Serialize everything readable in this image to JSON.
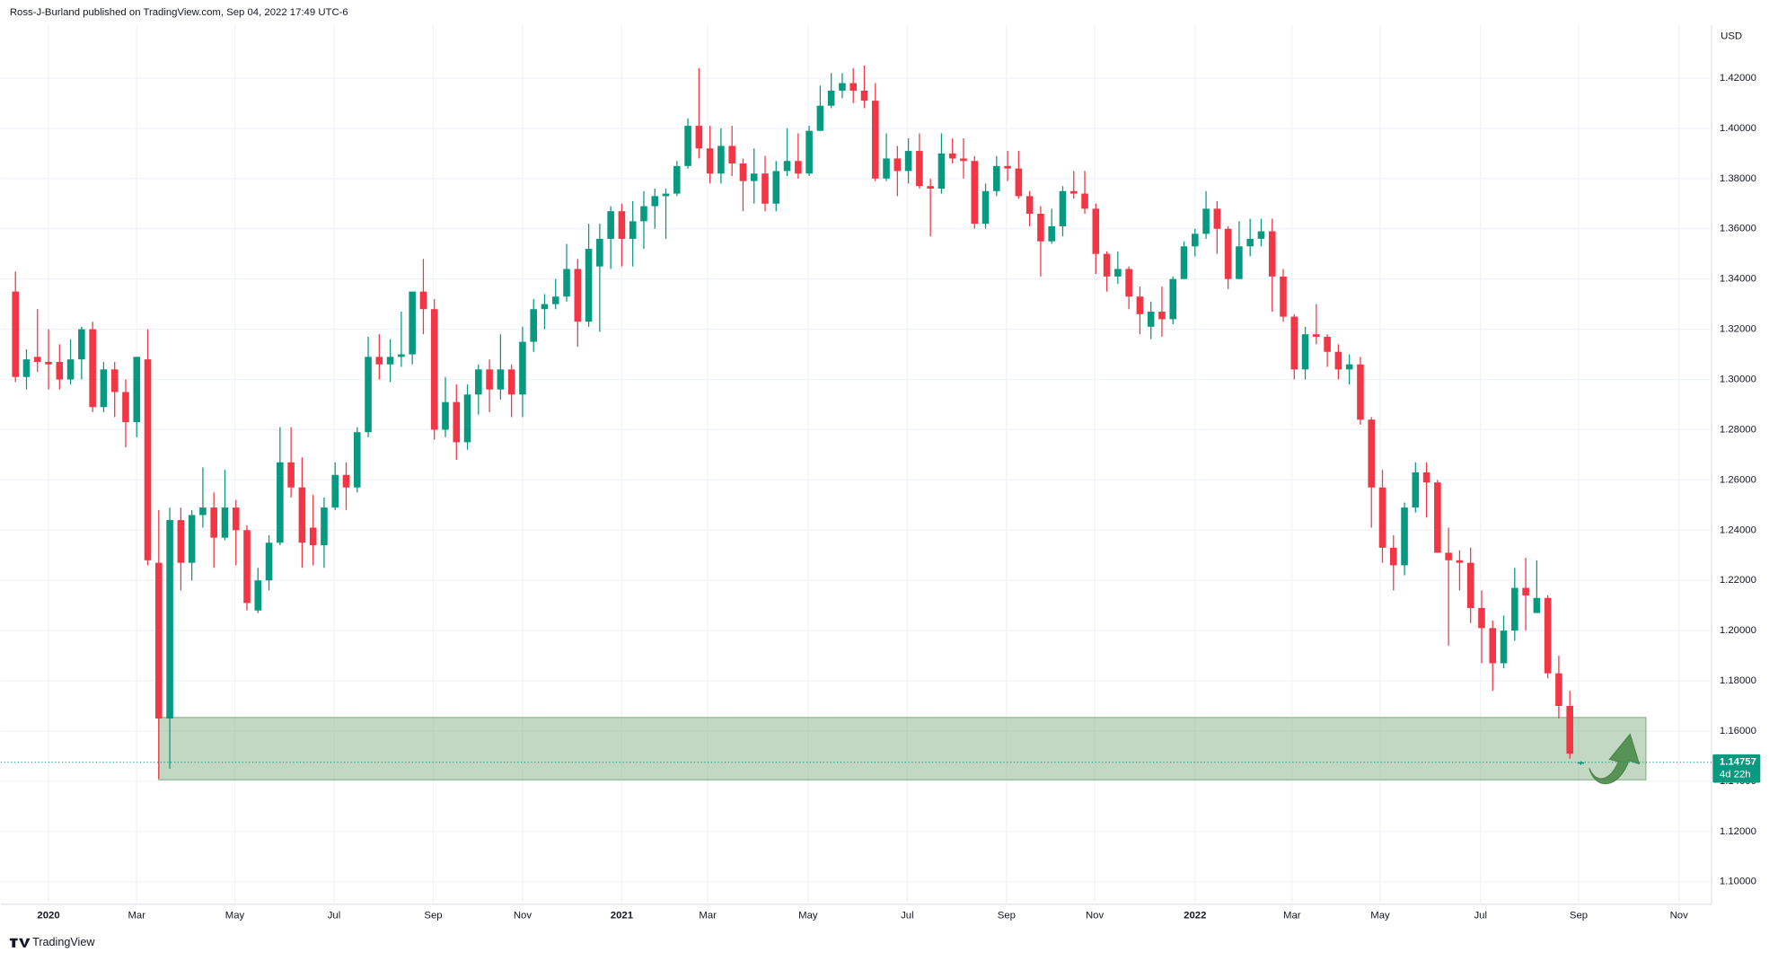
{
  "chart_data": {
    "type": "candlestick",
    "header": "Ross-J-Burland published on TradingView.com, Sep 04, 2022 17:49 UTC-6",
    "currency": "USD",
    "brand": "TradingView",
    "countdown": "4d 22h",
    "colors": {
      "up": "#089981",
      "down": "#f23645"
    },
    "grid": true,
    "xlim": [
      -1.34,
      153.86
    ],
    "xticks": [
      {
        "value": 3,
        "label": "2020"
      },
      {
        "value": 11,
        "label": "Mar"
      },
      {
        "value": 19.9,
        "label": "May"
      },
      {
        "value": 28.9,
        "label": "Jul"
      },
      {
        "value": 37.9,
        "label": "Sep"
      },
      {
        "value": 46,
        "label": "Nov"
      },
      {
        "value": 55,
        "label": "2021"
      },
      {
        "value": 62.8,
        "label": "Mar"
      },
      {
        "value": 71.9,
        "label": "May"
      },
      {
        "value": 80.9,
        "label": "Jul"
      },
      {
        "value": 89.9,
        "label": "Sep"
      },
      {
        "value": 97.9,
        "label": "Nov"
      },
      {
        "value": 107,
        "label": "2022"
      },
      {
        "value": 115.8,
        "label": "Mar"
      },
      {
        "value": 123.8,
        "label": "May"
      },
      {
        "value": 132.9,
        "label": "Jul"
      },
      {
        "value": 141.8,
        "label": "Sep"
      },
      {
        "value": 150.9,
        "label": "Nov"
      }
    ],
    "ylim": [
      1.091,
      1.4511
    ],
    "yticks": [
      {
        "value": 1.1,
        "label": "1.10000"
      },
      {
        "value": 1.12,
        "label": "1.12000"
      },
      {
        "value": 1.14,
        "label": "1.14000"
      },
      {
        "value": 1.16,
        "label": "1.16000"
      },
      {
        "value": 1.18,
        "label": "1.18000"
      },
      {
        "value": 1.2,
        "label": "1.20000"
      },
      {
        "value": 1.22,
        "label": "1.22000"
      },
      {
        "value": 1.24,
        "label": "1.24000"
      },
      {
        "value": 1.26,
        "label": "1.26000"
      },
      {
        "value": 1.28,
        "label": "1.28000"
      },
      {
        "value": 1.3,
        "label": "1.30000"
      },
      {
        "value": 1.32,
        "label": "1.32000"
      },
      {
        "value": 1.34,
        "label": "1.34000"
      },
      {
        "value": 1.36,
        "label": "1.36000"
      },
      {
        "value": 1.38,
        "label": "1.38000"
      },
      {
        "value": 1.4,
        "label": "1.40000"
      },
      {
        "value": 1.42,
        "label": "1.42000"
      }
    ],
    "zone": {
      "low": 1.1406,
      "high": 1.1654,
      "start": 13,
      "end": 147.9,
      "color": "#8fb88f"
    },
    "open": [
      1.335,
      1.301,
      1.309,
      1.307,
      1.307,
      1.3,
      1.308,
      1.32,
      1.289,
      1.304,
      1.295,
      1.283,
      1.308,
      1.227,
      1.165,
      1.244,
      1.227,
      1.246,
      1.249,
      1.237,
      1.249,
      1.24,
      1.208,
      1.22,
      1.235,
      1.267,
      1.257,
      1.241,
      1.234,
      1.249,
      1.262,
      1.257,
      1.279,
      1.309,
      1.306,
      1.309,
      1.31,
      1.335,
      1.328,
      1.28,
      1.291,
      1.275,
      1.294,
      1.304,
      1.296,
      1.304,
      1.294,
      1.315,
      1.328,
      1.33,
      1.333,
      1.344,
      1.323,
      1.345,
      1.356,
      1.367,
      1.356,
      1.363,
      1.369,
      1.373,
      1.374,
      1.385,
      1.401,
      1.392,
      1.382,
      1.393,
      1.386,
      1.379,
      1.382,
      1.37,
      1.383,
      1.387,
      1.382,
      1.399,
      1.409,
      1.415,
      1.418,
      1.415,
      1.411,
      1.38,
      1.388,
      1.383,
      1.391,
      1.377,
      1.376,
      1.39,
      1.388,
      1.387,
      1.362,
      1.375,
      1.385,
      1.384,
      1.373,
      1.366,
      1.355,
      1.361,
      1.375,
      1.374,
      1.368,
      1.35,
      1.341,
      1.344,
      1.333,
      1.321,
      1.327,
      1.324,
      1.34,
      1.353,
      1.358,
      1.368,
      1.36,
      1.34,
      1.353,
      1.356,
      1.359,
      1.341,
      1.325,
      1.304,
      1.318,
      1.317,
      1.311,
      1.304,
      1.306,
      1.284,
      1.257,
      1.233,
      1.226,
      1.249,
      1.263,
      1.259,
      1.231,
      1.228,
      1.227,
      1.209,
      1.201,
      1.187,
      1.2,
      1.217,
      1.207,
      1.213,
      1.183,
      1.17,
      1.147
    ],
    "high": [
      1.343,
      1.312,
      1.328,
      1.32,
      1.314,
      1.316,
      1.321,
      1.323,
      1.307,
      1.307,
      1.3,
      1.309,
      1.32,
      1.248,
      1.249,
      1.249,
      1.248,
      1.265,
      1.255,
      1.264,
      1.252,
      1.242,
      1.225,
      1.238,
      1.281,
      1.281,
      1.269,
      1.254,
      1.253,
      1.267,
      1.267,
      1.281,
      1.317,
      1.318,
      1.316,
      1.327,
      1.335,
      1.348,
      1.332,
      1.301,
      1.298,
      1.298,
      1.306,
      1.308,
      1.318,
      1.306,
      1.321,
      1.332,
      1.334,
      1.34,
      1.354,
      1.348,
      1.362,
      1.362,
      1.369,
      1.37,
      1.371,
      1.375,
      1.376,
      1.376,
      1.387,
      1.404,
      1.424,
      1.401,
      1.4,
      1.401,
      1.388,
      1.392,
      1.389,
      1.387,
      1.4,
      1.398,
      1.401,
      1.417,
      1.422,
      1.422,
      1.424,
      1.425,
      1.418,
      1.398,
      1.393,
      1.396,
      1.398,
      1.38,
      1.398,
      1.396,
      1.396,
      1.389,
      1.378,
      1.389,
      1.391,
      1.391,
      1.375,
      1.369,
      1.368,
      1.377,
      1.383,
      1.383,
      1.37,
      1.351,
      1.351,
      1.345,
      1.337,
      1.331,
      1.337,
      1.341,
      1.355,
      1.36,
      1.375,
      1.371,
      1.361,
      1.363,
      1.364,
      1.364,
      1.364,
      1.344,
      1.326,
      1.321,
      1.33,
      1.318,
      1.314,
      1.31,
      1.309,
      1.285,
      1.264,
      1.238,
      1.251,
      1.267,
      1.267,
      1.26,
      1.241,
      1.232,
      1.233,
      1.216,
      1.204,
      1.206,
      1.225,
      1.229,
      1.228,
      1.214,
      1.19,
      1.176,
      1.148
    ],
    "low": [
      1.299,
      1.296,
      1.303,
      1.296,
      1.296,
      1.298,
      1.3,
      1.287,
      1.287,
      1.285,
      1.273,
      1.277,
      1.226,
      1.141,
      1.145,
      1.216,
      1.22,
      1.241,
      1.225,
      1.236,
      1.226,
      1.208,
      1.207,
      1.216,
      1.234,
      1.253,
      1.225,
      1.226,
      1.225,
      1.248,
      1.248,
      1.255,
      1.277,
      1.3,
      1.299,
      1.305,
      1.306,
      1.318,
      1.276,
      1.277,
      1.268,
      1.272,
      1.286,
      1.287,
      1.292,
      1.285,
      1.285,
      1.311,
      1.32,
      1.328,
      1.331,
      1.313,
      1.321,
      1.319,
      1.344,
      1.345,
      1.345,
      1.352,
      1.36,
      1.356,
      1.373,
      1.384,
      1.388,
      1.378,
      1.378,
      1.381,
      1.367,
      1.37,
      1.367,
      1.367,
      1.381,
      1.38,
      1.381,
      1.399,
      1.408,
      1.412,
      1.41,
      1.408,
      1.379,
      1.379,
      1.373,
      1.378,
      1.376,
      1.357,
      1.374,
      1.386,
      1.38,
      1.36,
      1.36,
      1.373,
      1.379,
      1.372,
      1.361,
      1.341,
      1.354,
      1.357,
      1.372,
      1.366,
      1.342,
      1.335,
      1.338,
      1.328,
      1.318,
      1.316,
      1.317,
      1.322,
      1.34,
      1.349,
      1.356,
      1.35,
      1.336,
      1.34,
      1.349,
      1.353,
      1.327,
      1.323,
      1.3,
      1.3,
      1.314,
      1.305,
      1.3,
      1.298,
      1.282,
      1.241,
      1.227,
      1.216,
      1.222,
      1.247,
      1.245,
      1.231,
      1.194,
      1.216,
      1.203,
      1.187,
      1.176,
      1.185,
      1.196,
      1.2,
      1.207,
      1.181,
      1.165,
      1.149,
      1.1465
    ],
    "close": [
      1.301,
      1.308,
      1.307,
      1.306,
      1.3,
      1.308,
      1.32,
      1.289,
      1.304,
      1.295,
      1.283,
      1.309,
      1.228,
      1.165,
      1.244,
      1.227,
      1.246,
      1.249,
      1.237,
      1.249,
      1.24,
      1.211,
      1.22,
      1.235,
      1.267,
      1.257,
      1.235,
      1.234,
      1.249,
      1.262,
      1.257,
      1.279,
      1.309,
      1.306,
      1.309,
      1.31,
      1.335,
      1.328,
      1.28,
      1.291,
      1.275,
      1.294,
      1.304,
      1.296,
      1.304,
      1.294,
      1.315,
      1.328,
      1.33,
      1.333,
      1.344,
      1.323,
      1.352,
      1.356,
      1.367,
      1.356,
      1.363,
      1.369,
      1.373,
      1.374,
      1.385,
      1.401,
      1.392,
      1.382,
      1.393,
      1.386,
      1.379,
      1.382,
      1.37,
      1.383,
      1.387,
      1.382,
      1.399,
      1.409,
      1.415,
      1.418,
      1.415,
      1.411,
      1.38,
      1.388,
      1.383,
      1.391,
      1.377,
      1.376,
      1.39,
      1.388,
      1.387,
      1.362,
      1.375,
      1.385,
      1.384,
      1.373,
      1.366,
      1.355,
      1.361,
      1.375,
      1.374,
      1.368,
      1.35,
      1.341,
      1.344,
      1.333,
      1.326,
      1.327,
      1.324,
      1.34,
      1.353,
      1.358,
      1.368,
      1.36,
      1.34,
      1.353,
      1.356,
      1.359,
      1.341,
      1.325,
      1.304,
      1.318,
      1.317,
      1.311,
      1.304,
      1.306,
      1.284,
      1.257,
      1.233,
      1.226,
      1.249,
      1.263,
      1.259,
      1.231,
      1.228,
      1.227,
      1.209,
      1.201,
      1.187,
      1.2,
      1.217,
      1.214,
      1.213,
      1.183,
      1.17,
      1.151,
      1.14757
    ]
  }
}
